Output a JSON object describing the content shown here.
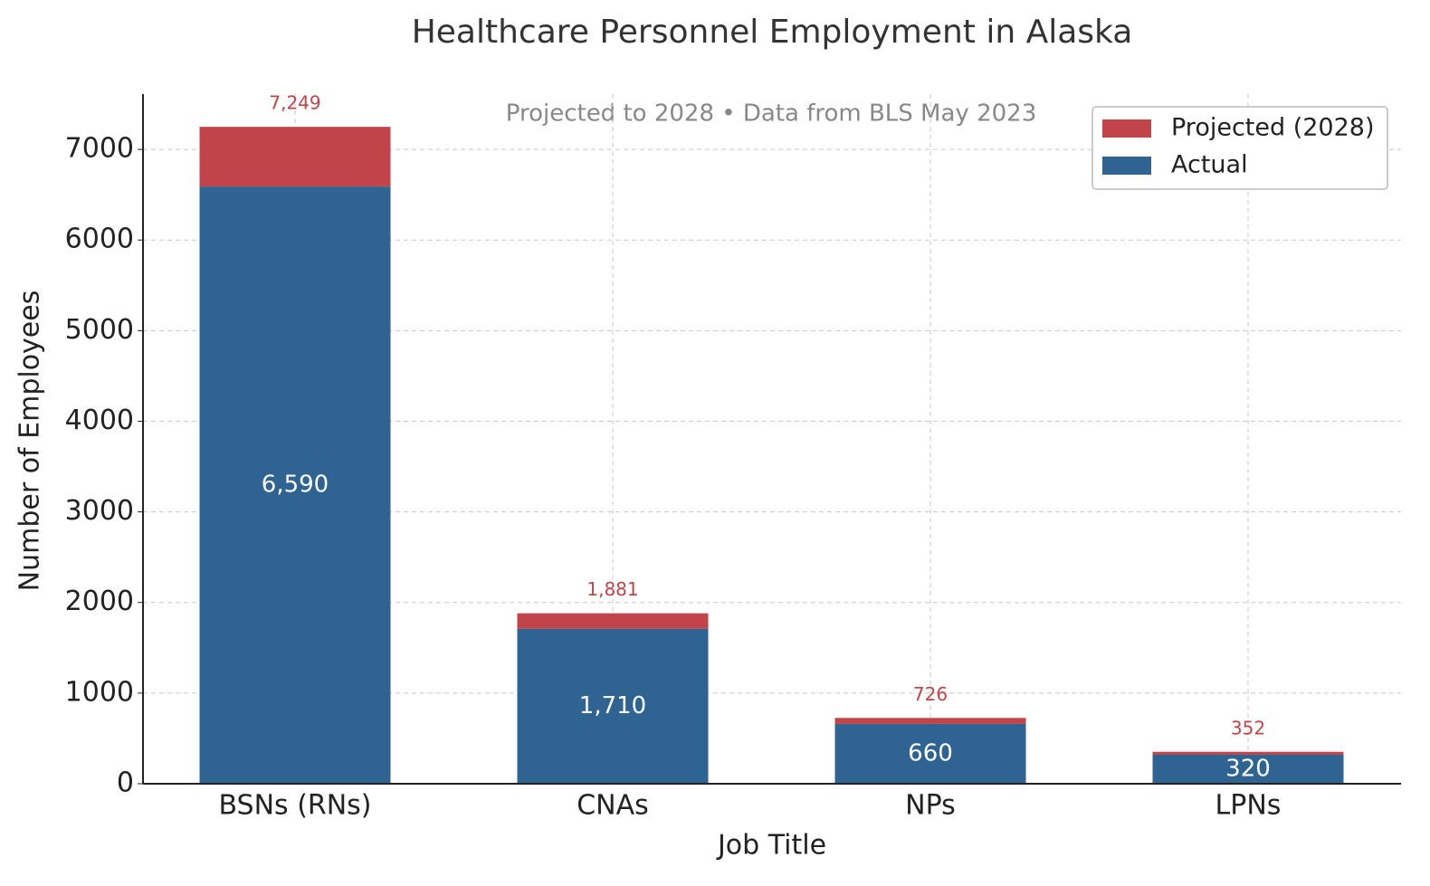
{
  "chart_data": {
    "type": "stacked_bar",
    "title": "Healthcare Personnel Employment in Alaska",
    "subtitle": "Projected to 2028 • Data from BLS May 2023",
    "x_label": "Job Title",
    "y_label": "Number of Employees",
    "categories": [
      "BSNs (RNs)",
      "CNAs",
      "NPs",
      "LPNs"
    ],
    "series": [
      {
        "name": "Actual",
        "color": "#2f6391",
        "values": [
          6590,
          1710,
          660,
          320
        ],
        "value_labels": [
          "6,590",
          "1,710",
          "660",
          "320"
        ]
      },
      {
        "name": "Projected (2028)",
        "color": "#c0444a",
        "values": [
          659,
          171,
          66,
          32
        ]
      }
    ],
    "totals": [
      7249,
      1881,
      726,
      352
    ],
    "total_labels": [
      "7,249",
      "1,881",
      "726",
      "352"
    ],
    "ylim": [
      0,
      7610
    ],
    "yticks": [
      0,
      1000,
      2000,
      3000,
      4000,
      5000,
      6000,
      7000
    ],
    "grid": true,
    "legend": "upper right"
  }
}
